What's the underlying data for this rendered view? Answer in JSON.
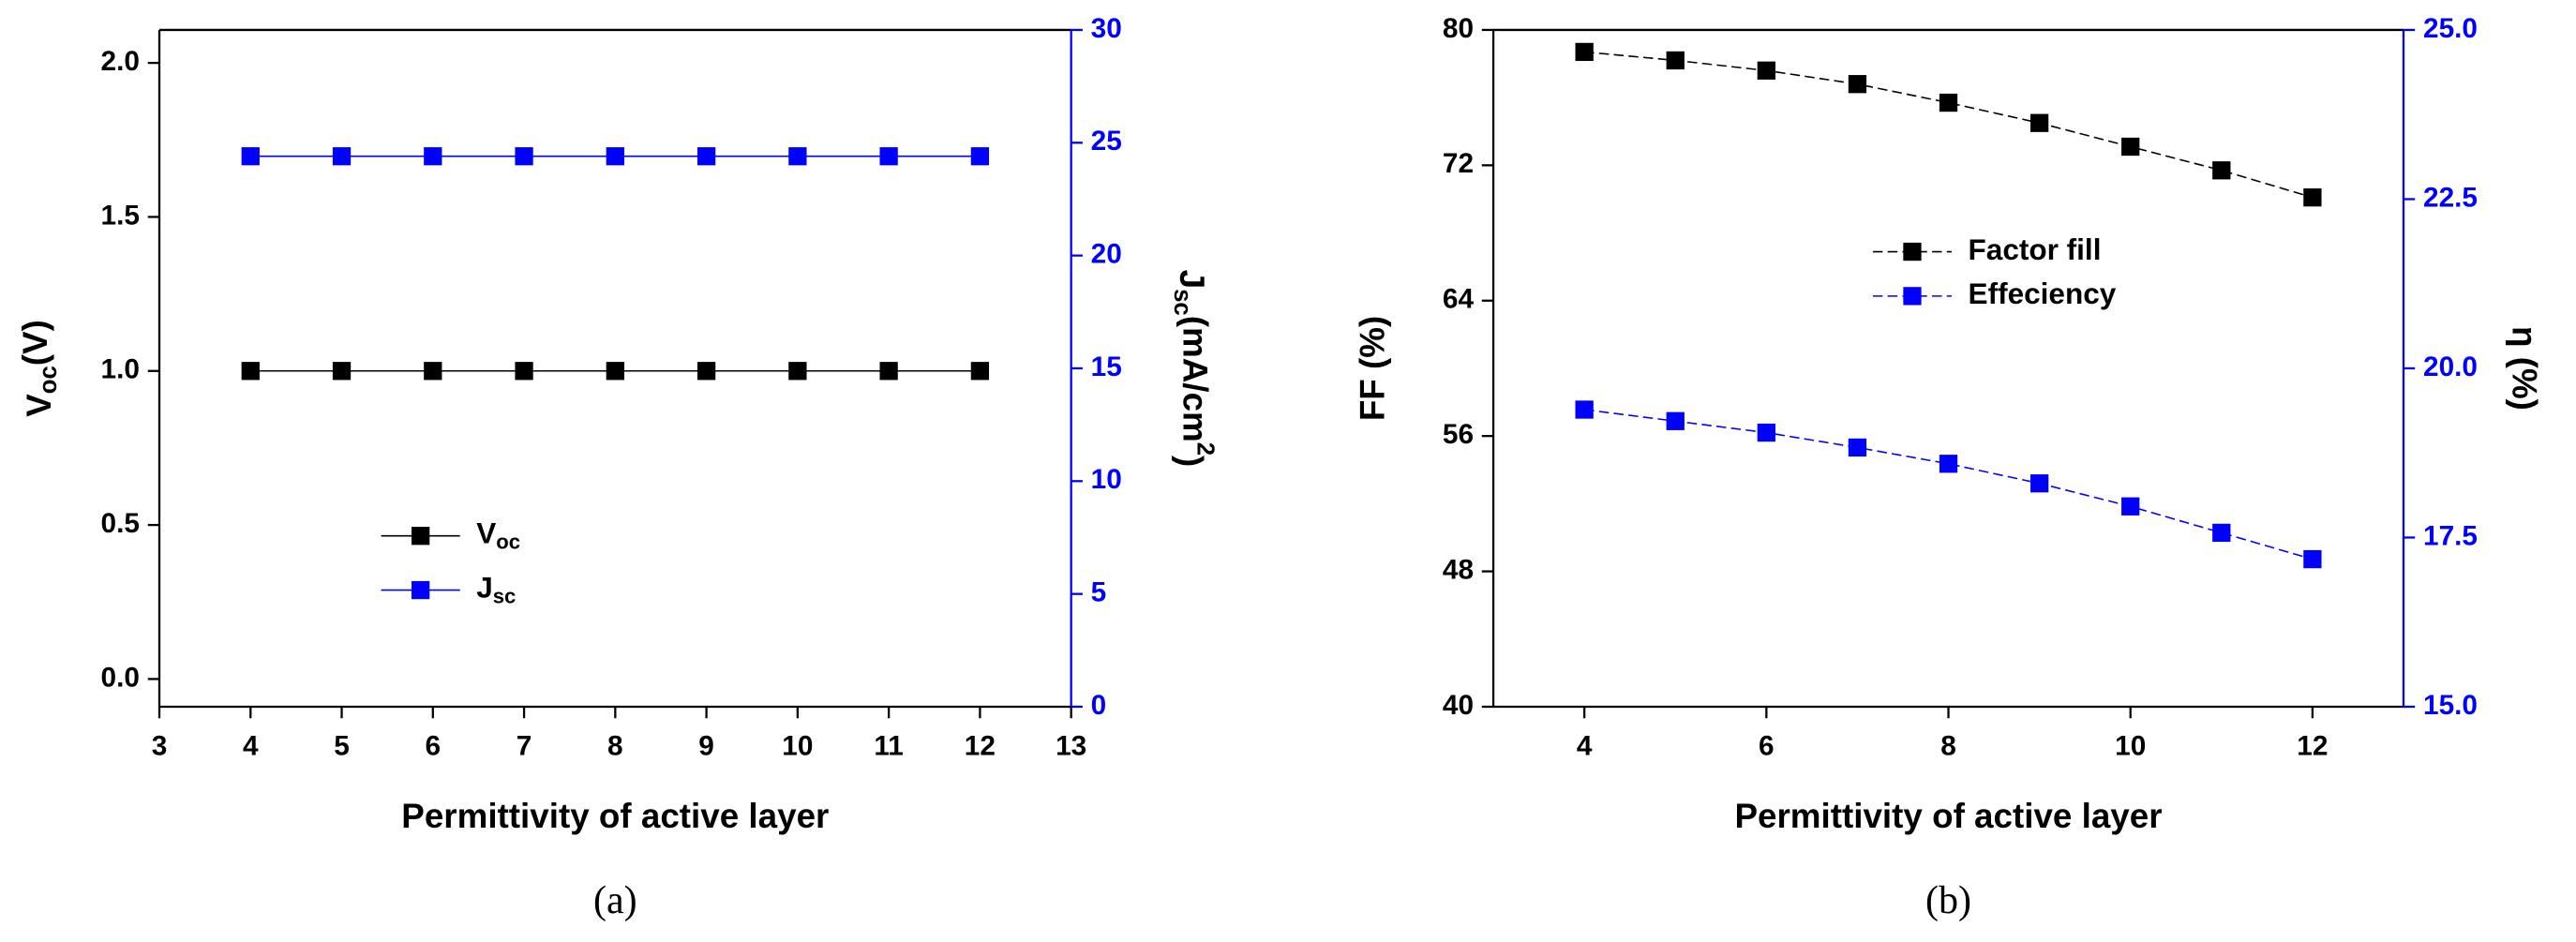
{
  "chart_data": [
    {
      "type": "line",
      "x": [
        4,
        5,
        6,
        7,
        8,
        9,
        10,
        11,
        12
      ],
      "xlim": [
        3,
        13
      ],
      "xticks": [
        3,
        4,
        5,
        6,
        7,
        8,
        9,
        10,
        11,
        12,
        13
      ],
      "ylim": [
        -0.09,
        2.107
      ],
      "yticks": [
        {
          "value": 0,
          "label": "0.0"
        },
        0.5,
        {
          "value": 1,
          "label": "1.0"
        },
        1.5,
        {
          "value": 2,
          "label": "2.0"
        }
      ],
      "y2lim": [
        0,
        30
      ],
      "y2ticks": [
        0,
        5,
        10,
        15,
        20,
        25,
        30
      ],
      "xlabel": "Permittivity of active layer",
      "ylabel": [
        "V",
        "oc",
        "(V)"
      ],
      "y2label": [
        "J",
        "sc",
        "(mA/cm",
        "2",
        ")"
      ],
      "caption": "(a)",
      "dashed": false,
      "series": [
        {
          "name": [
            "V",
            "oc"
          ],
          "color": "#000000",
          "values": [
            1.0,
            1.0,
            1.0,
            1.0,
            1.0,
            1.0,
            1.0,
            1.0,
            1.0
          ]
        },
        {
          "name": [
            "J",
            "sc"
          ],
          "color": "#0000ff",
          "axis": "y2",
          "values": [
            24.4,
            24.4,
            24.4,
            24.4,
            24.4,
            24.4,
            24.4,
            24.4,
            24.4
          ]
        }
      ]
    },
    {
      "type": "line",
      "x": [
        4,
        5,
        6,
        7,
        8,
        9,
        10,
        11,
        12
      ],
      "xlim": [
        3,
        13
      ],
      "xticks": [
        4,
        6,
        8,
        10,
        12
      ],
      "ylim": [
        40,
        80
      ],
      "yticks": [
        40,
        48,
        56,
        64,
        72,
        80
      ],
      "y2lim": [
        15,
        25
      ],
      "y2ticks": [
        {
          "value": 15,
          "label": "15.0"
        },
        17.5,
        {
          "value": 20,
          "label": "20.0"
        },
        22.5,
        {
          "value": 25,
          "label": "25.0"
        }
      ],
      "xlabel": "Permittivity of active layer",
      "ylabel": "FF (%)",
      "y2label": "η (%)",
      "caption": "(b)",
      "dashed": true,
      "series": [
        {
          "name": "Factor fill",
          "color": "#000000",
          "values": [
            78.7,
            78.2,
            77.6,
            76.8,
            75.7,
            74.5,
            73.1,
            71.7,
            70.1
          ]
        },
        {
          "name": "Effeciency",
          "color": "#0000ff",
          "axis": "y2",
          "values": [
            19.39,
            19.22,
            19.05,
            18.83,
            18.59,
            18.3,
            17.96,
            17.57,
            17.18
          ]
        }
      ]
    }
  ]
}
